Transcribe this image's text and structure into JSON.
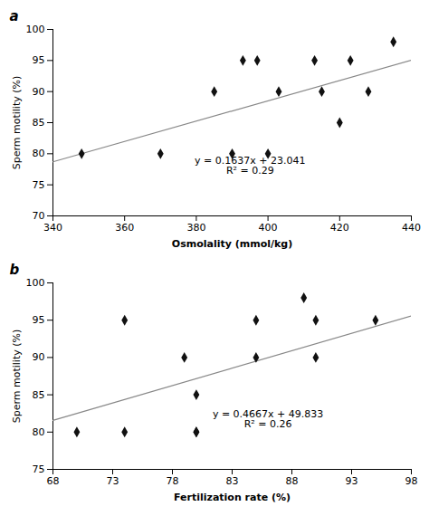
{
  "chart_data": [
    {
      "type": "scatter",
      "title": "a",
      "xlabel": "Osmolality (mmol/kg)",
      "ylabel": "Sperm motility (%)",
      "annotation": [
        "y = 0.1637x + 23.041",
        "R² = 0.29"
      ],
      "series": [
        {
          "type": "scatter",
          "marker": "diamond",
          "color": "#111111",
          "x": [
            348,
            370,
            385,
            390,
            393,
            397,
            403,
            400,
            413,
            415,
            420,
            423,
            428,
            435
          ],
          "values": [
            80,
            80,
            90,
            80,
            95,
            95,
            90,
            80,
            95,
            90,
            85,
            95,
            90,
            98
          ]
        },
        {
          "type": "line",
          "color": "#888888",
          "x": [
            340,
            440
          ],
          "values": [
            78.699,
            95.069
          ]
        }
      ],
      "xlim": [
        340,
        440
      ],
      "ylim": [
        70,
        100
      ],
      "xticks": [
        340,
        360,
        380,
        400,
        420,
        440
      ],
      "yticks": [
        70,
        75,
        80,
        85,
        90,
        95,
        100
      ],
      "grid": false
    },
    {
      "type": "scatter",
      "title": "b",
      "xlabel": "Fertilization rate (%)",
      "ylabel": "Sperm motility (%)",
      "annotation": [
        "y = 0.4667x + 49.833",
        "R² = 0.26"
      ],
      "series": [
        {
          "type": "scatter",
          "marker": "diamond",
          "color": "#111111",
          "x": [
            70,
            74,
            74,
            79,
            80,
            80,
            80,
            85,
            85,
            89,
            90,
            90,
            95
          ],
          "values": [
            80,
            80,
            95,
            90,
            85,
            80,
            80,
            95,
            90,
            98,
            95,
            90,
            95
          ]
        },
        {
          "type": "line",
          "color": "#888888",
          "x": [
            68,
            98
          ],
          "values": [
            81.5686,
            95.5696
          ]
        }
      ],
      "xlim": [
        68,
        98
      ],
      "ylim": [
        75,
        100
      ],
      "xticks": [
        68,
        73,
        78,
        83,
        88,
        93,
        98
      ],
      "yticks": [
        75,
        80,
        85,
        90,
        95,
        100
      ],
      "grid": false
    }
  ]
}
